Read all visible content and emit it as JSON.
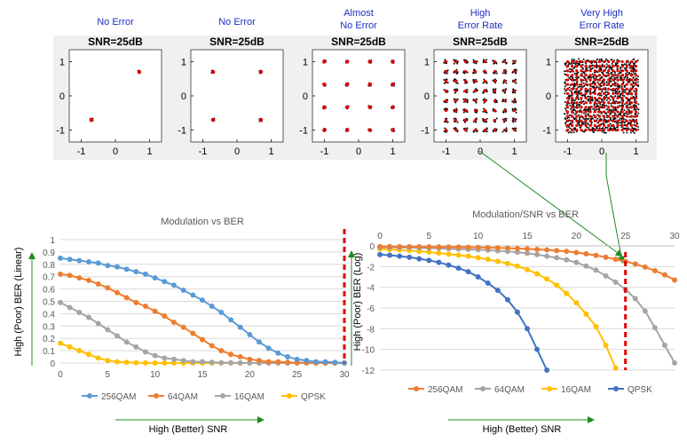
{
  "constellations": {
    "snr_label": "SNR=25dB",
    "panels": [
      {
        "caption": [
          "No Error"
        ],
        "points": 2
      },
      {
        "caption": [
          "No Error"
        ],
        "points": 4
      },
      {
        "caption": [
          "Almost",
          "No Error"
        ],
        "points": 16
      },
      {
        "caption": [
          "High",
          "Error Rate"
        ],
        "points": 64
      },
      {
        "caption": [
          "Very High",
          "Error Rate"
        ],
        "points": 256
      }
    ],
    "xticks": [
      "-1",
      "0",
      "1"
    ],
    "yticks": [
      "1",
      "0",
      "-1"
    ]
  },
  "colors": {
    "c256": "#ED7D31",
    "c64": "#A5A5A5",
    "c16": "#FFC000",
    "qpsk": "#4472C4",
    "c256_linear": "#5B9BD5",
    "threshold": "#E00000",
    "arrow": "#1E8C1E",
    "caption": "#1F2FC0"
  },
  "chart_data": [
    {
      "type": "line",
      "title": "Modulation vs BER",
      "xlabel": "High (Better) SNR",
      "ylabel": "High (Poor) BER (Linear)",
      "xlim": [
        0,
        30
      ],
      "ylim": [
        0,
        1
      ],
      "xticks": [
        0,
        5,
        10,
        15,
        20,
        25,
        30
      ],
      "yticks": [
        0,
        0.1,
        0.2,
        0.3,
        0.4,
        0.5,
        0.6,
        0.7,
        0.8,
        0.9,
        1
      ],
      "legend_position": "bottom",
      "threshold_x": 30,
      "x": [
        0,
        1,
        2,
        3,
        4,
        5,
        6,
        7,
        8,
        9,
        10,
        11,
        12,
        13,
        14,
        15,
        16,
        17,
        18,
        19,
        20,
        21,
        22,
        23,
        24,
        25,
        26,
        27,
        28,
        29,
        30
      ],
      "series": [
        {
          "name": "256QAM",
          "color": "#5B9BD5",
          "values": [
            0.85,
            0.84,
            0.83,
            0.82,
            0.81,
            0.79,
            0.78,
            0.76,
            0.74,
            0.72,
            0.69,
            0.66,
            0.63,
            0.59,
            0.55,
            0.51,
            0.46,
            0.41,
            0.35,
            0.29,
            0.23,
            0.17,
            0.12,
            0.08,
            0.05,
            0.03,
            0.02,
            0.01,
            0.01,
            0.005,
            0
          ]
        },
        {
          "name": "64QAM",
          "color": "#ED7D31",
          "values": [
            0.72,
            0.71,
            0.69,
            0.67,
            0.64,
            0.61,
            0.57,
            0.53,
            0.49,
            0.46,
            0.42,
            0.38,
            0.33,
            0.29,
            0.24,
            0.19,
            0.14,
            0.1,
            0.07,
            0.05,
            0.03,
            0.02,
            0.01,
            0.01,
            0.005,
            0.003,
            0.002,
            0.001,
            0,
            0,
            0
          ]
        },
        {
          "name": "16QAM",
          "color": "#A5A5A5",
          "values": [
            0.49,
            0.45,
            0.41,
            0.37,
            0.32,
            0.27,
            0.22,
            0.17,
            0.13,
            0.09,
            0.06,
            0.04,
            0.03,
            0.02,
            0.01,
            0.01,
            0.005,
            0.003,
            0.002,
            0.001,
            0,
            0,
            0,
            0,
            0,
            0,
            0,
            0,
            0,
            0,
            0
          ]
        },
        {
          "name": "QPSK",
          "color": "#FFC000",
          "values": [
            0.16,
            0.13,
            0.1,
            0.07,
            0.04,
            0.02,
            0.01,
            0.005,
            0.002,
            0.001,
            0,
            0,
            0,
            0,
            0,
            0,
            0,
            0,
            0,
            0,
            0,
            0,
            0,
            0,
            0,
            0,
            0,
            0,
            0,
            0,
            0
          ]
        }
      ]
    },
    {
      "type": "line",
      "title": "Modulation/SNR vs BER",
      "xlabel": "High (Better) SNR",
      "ylabel": "High (Poor) BER (Log)",
      "xlim": [
        0,
        30
      ],
      "ylim": [
        -12,
        0
      ],
      "xticks": [
        0,
        5,
        10,
        15,
        20,
        25,
        30
      ],
      "yticks": [
        0,
        -2,
        -4,
        -6,
        -8,
        -10,
        -12
      ],
      "xaxis_position": "top",
      "legend_position": "bottom",
      "threshold_x": 25,
      "series": [
        {
          "name": "256QAM",
          "color": "#ED7D31",
          "x": [
            0,
            1,
            2,
            3,
            4,
            5,
            6,
            7,
            8,
            9,
            10,
            11,
            12,
            13,
            14,
            15,
            16,
            17,
            18,
            19,
            20,
            21,
            22,
            23,
            24,
            25,
            26,
            27,
            28,
            29,
            30
          ],
          "values": [
            -0.07,
            -0.07,
            -0.08,
            -0.08,
            -0.09,
            -0.1,
            -0.1,
            -0.11,
            -0.12,
            -0.14,
            -0.15,
            -0.17,
            -0.19,
            -0.22,
            -0.26,
            -0.29,
            -0.34,
            -0.39,
            -0.46,
            -0.53,
            -0.64,
            -0.77,
            -0.92,
            -1.1,
            -1.3,
            -1.5,
            -1.75,
            -2.05,
            -2.4,
            -2.8,
            -3.3
          ]
        },
        {
          "name": "64QAM",
          "color": "#A5A5A5",
          "x": [
            0,
            1,
            2,
            3,
            4,
            5,
            6,
            7,
            8,
            9,
            10,
            11,
            12,
            13,
            14,
            15,
            16,
            17,
            18,
            19,
            20,
            21,
            22,
            23,
            24,
            25,
            26,
            27,
            28,
            29,
            30
          ],
          "values": [
            -0.14,
            -0.15,
            -0.16,
            -0.17,
            -0.19,
            -0.21,
            -0.24,
            -0.28,
            -0.31,
            -0.34,
            -0.38,
            -0.42,
            -0.48,
            -0.54,
            -0.62,
            -0.72,
            -0.85,
            -1.0,
            -1.15,
            -1.35,
            -1.6,
            -1.95,
            -2.35,
            -2.9,
            -3.5,
            -4.2,
            -5.1,
            -6.3,
            -7.9,
            -9.6,
            -11.3
          ]
        },
        {
          "name": "16QAM",
          "color": "#FFC000",
          "x": [
            0,
            1,
            2,
            3,
            4,
            5,
            6,
            7,
            8,
            9,
            10,
            11,
            12,
            13,
            14,
            15,
            16,
            17,
            18,
            19,
            20,
            21,
            22,
            23,
            24
          ],
          "values": [
            -0.3,
            -0.35,
            -0.4,
            -0.45,
            -0.52,
            -0.6,
            -0.7,
            -0.8,
            -0.9,
            -1.0,
            -1.15,
            -1.3,
            -1.5,
            -1.7,
            -1.95,
            -2.3,
            -2.7,
            -3.2,
            -3.8,
            -4.6,
            -5.5,
            -6.6,
            -7.8,
            -9.6,
            -11.8
          ]
        },
        {
          "name": "QPSK",
          "color": "#4472C4",
          "x": [
            0,
            1,
            2,
            3,
            4,
            5,
            6,
            7,
            8,
            9,
            10,
            11,
            12,
            13,
            14,
            15,
            16,
            17
          ],
          "values": [
            -0.85,
            -0.9,
            -1.0,
            -1.1,
            -1.25,
            -1.4,
            -1.6,
            -1.85,
            -2.15,
            -2.5,
            -3.0,
            -3.6,
            -4.3,
            -5.2,
            -6.4,
            -8.0,
            -10.0,
            -12.0
          ]
        }
      ]
    }
  ]
}
